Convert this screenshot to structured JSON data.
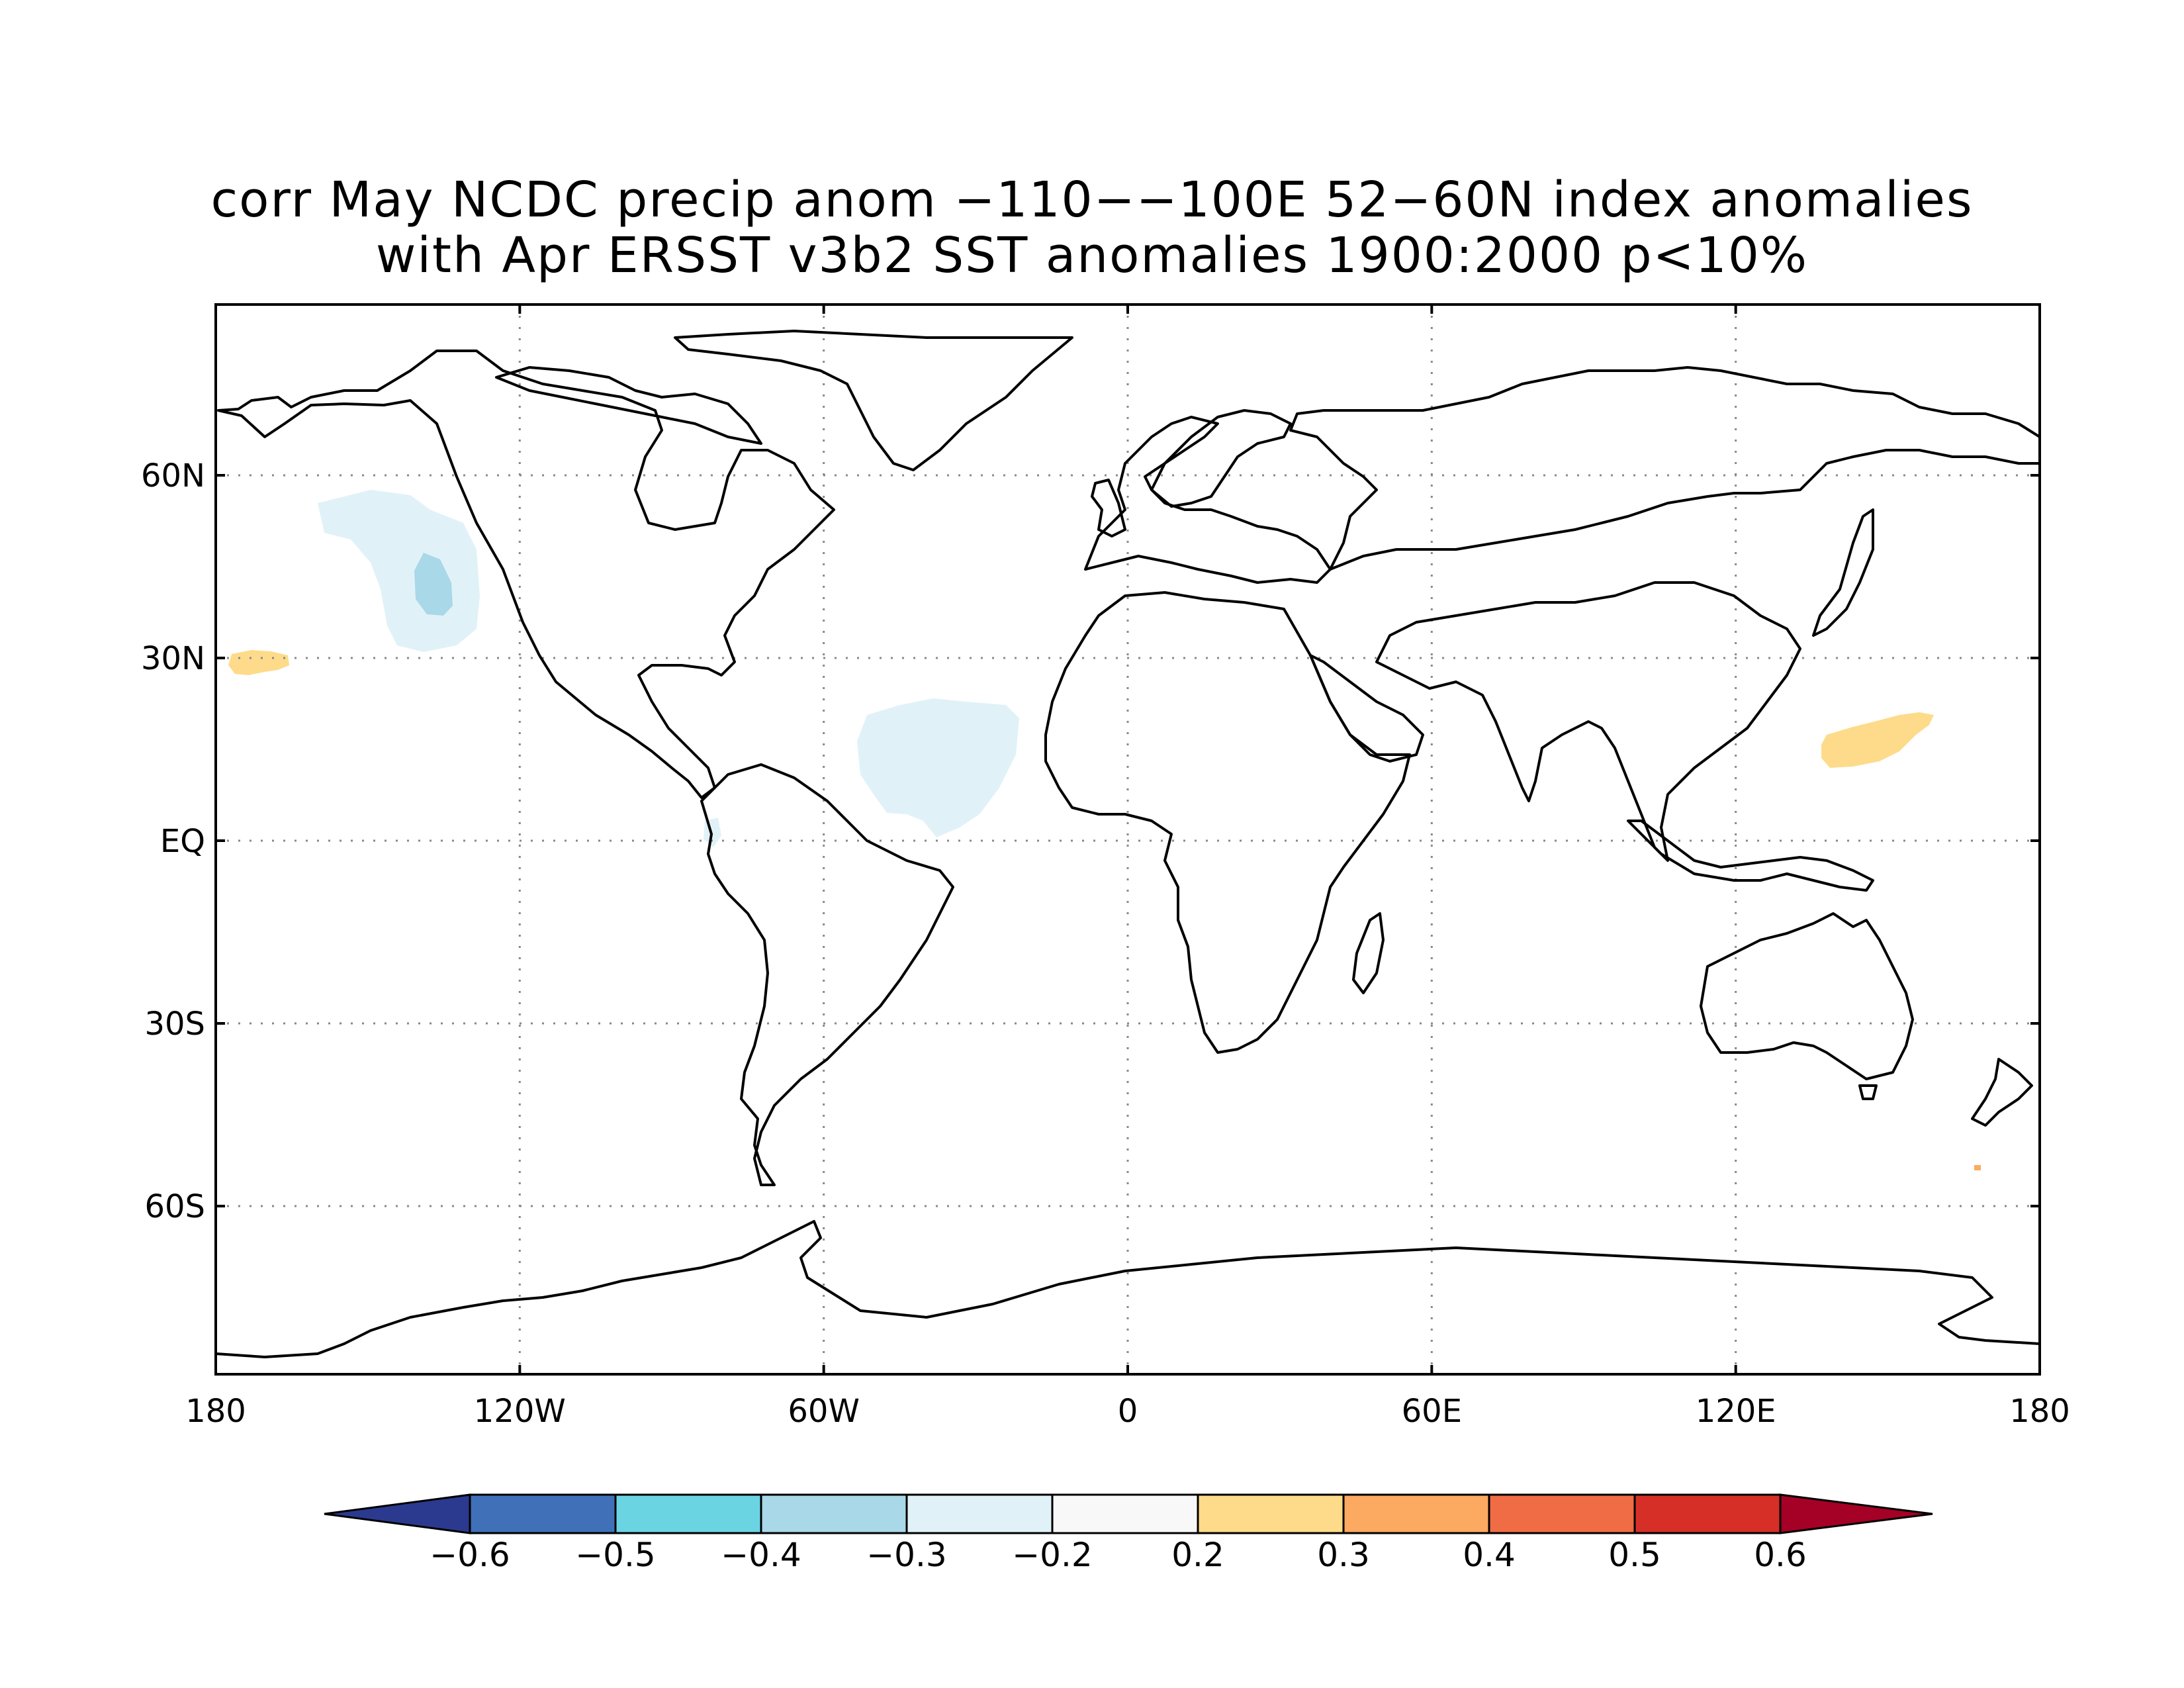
{
  "title": {
    "line1": "corr May NCDC precip anom −110−−100E 52−60N index anomalies",
    "line2": "with Apr ERSST v3b2 SST anomalies 1900:2000 p<10%"
  },
  "axes": {
    "x_ticks": [
      "180",
      "120W",
      "60W",
      "0",
      "60E",
      "120E",
      "180"
    ],
    "y_ticks": [
      "60N",
      "30N",
      "EQ",
      "30S",
      "60S"
    ],
    "lon_range": [
      -180,
      180
    ],
    "lat_range": [
      -88,
      88
    ],
    "grid": "dotted"
  },
  "colorbar": {
    "labels": [
      "−0.6",
      "−0.5",
      "−0.4",
      "−0.3",
      "−0.2",
      "0.2",
      "0.3",
      "0.4",
      "0.5",
      "0.6"
    ],
    "colors": [
      "#2b3a8f",
      "#4070b8",
      "#6bd4e3",
      "#a9d8e8",
      "#e0f2f8",
      "#f8f8f8",
      "#fddb8a",
      "#fcaa61",
      "#f06c45",
      "#d62f27",
      "#a50026"
    ]
  },
  "regions": [
    {
      "name": "NE Pacific negative",
      "colors": [
        "#e0f2f8",
        "#a9d8e8"
      ],
      "lon": -135,
      "lat": 45
    },
    {
      "name": "Tropical Atlantic negative",
      "colors": [
        "#e0f2f8"
      ],
      "lon": -40,
      "lat": 15
    },
    {
      "name": "Subtropical Pacific positive",
      "colors": [
        "#fddb8a"
      ],
      "lon": -175,
      "lat": 29
    },
    {
      "name": "Western Pacific positive",
      "colors": [
        "#fddb8a"
      ],
      "lon": 140,
      "lat": 17
    }
  ]
}
